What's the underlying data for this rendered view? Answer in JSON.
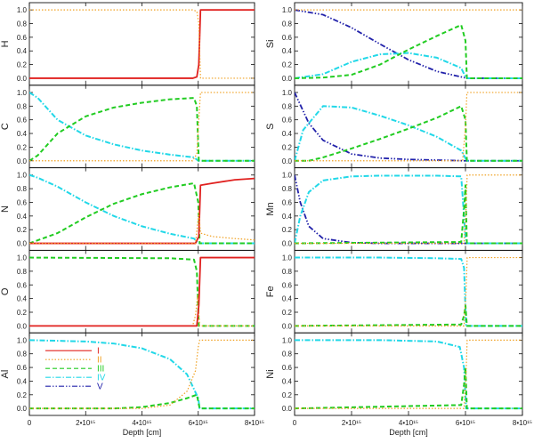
{
  "colors": {
    "I": "#e0201e",
    "II": "#f0a020",
    "III": "#22cc22",
    "IV": "#22d8e8",
    "V": "#2222aa"
  },
  "chart_data": {
    "type": "line",
    "xlim": [
      0,
      8000000000000000.0
    ],
    "ylim": [
      -0.05,
      1.08
    ],
    "ytick_values": [
      0.0,
      0.2,
      0.4,
      0.6,
      0.8,
      1.0
    ],
    "ytick_labels": [
      "0.0",
      "0.2",
      "0.4",
      "0.6",
      "0.8",
      "1.0"
    ],
    "xtick_values": [
      0,
      2000000000000000.0,
      4000000000000000.0,
      6000000000000000.0,
      8000000000000000.0
    ],
    "xtick_labels": [
      "0",
      "2•10¹⁵",
      "4•10¹⁵",
      "6•10¹⁵",
      "8•10¹⁵"
    ],
    "xlabel": "Depth [cm]",
    "legend": {
      "location": "Al panel, upper left",
      "entries": [
        {
          "label": "I",
          "ion": "I"
        },
        {
          "label": "II",
          "ion": "II"
        },
        {
          "label": "III",
          "ion": "III"
        },
        {
          "label": "IV",
          "ion": "IV"
        },
        {
          "label": "V",
          "ion": "V"
        }
      ]
    },
    "panels": [
      {
        "ylabel": "H",
        "series": [
          {
            "ion": "I",
            "x": [
              0,
              5800000000000000.0,
              5950000000000000.0,
              6020000000000000.0,
              6080000000000000.0,
              8000000000000000.0
            ],
            "y": [
              0,
              0,
              0.02,
              0.2,
              1.0,
              1.0
            ]
          },
          {
            "ion": "II",
            "x": [
              0,
              5800000000000000.0,
              5950000000000000.0,
              6020000000000000.0,
              6080000000000000.0,
              8000000000000000.0
            ],
            "y": [
              1.0,
              1.0,
              0.98,
              0.8,
              0.0,
              0.0
            ]
          }
        ]
      },
      {
        "ylabel": "Si",
        "series": [
          {
            "ion": "V",
            "x": [
              0,
              1000000000000000.0,
              2000000000000000.0,
              3000000000000000.0,
              4000000000000000.0,
              5000000000000000.0,
              5950000000000000.0,
              6050000000000000.0,
              8000000000000000.0
            ],
            "y": [
              1.0,
              0.93,
              0.74,
              0.5,
              0.27,
              0.1,
              0.01,
              0.0,
              0.0
            ]
          },
          {
            "ion": "IV",
            "x": [
              0,
              1000000000000000.0,
              2000000000000000.0,
              3000000000000000.0,
              4000000000000000.0,
              5000000000000000.0,
              5850000000000000.0,
              6000000000000000.0,
              6050000000000000.0,
              8000000000000000.0
            ],
            "y": [
              0.0,
              0.06,
              0.24,
              0.35,
              0.37,
              0.3,
              0.15,
              0.02,
              0.0,
              0.0
            ]
          },
          {
            "ion": "III",
            "x": [
              0,
              1000000000000000.0,
              2000000000000000.0,
              3000000000000000.0,
              4000000000000000.0,
              5000000000000000.0,
              5850000000000000.0,
              6000000000000000.0,
              6050000000000000.0,
              8000000000000000.0
            ],
            "y": [
              0.0,
              0.01,
              0.05,
              0.2,
              0.42,
              0.62,
              0.78,
              0.55,
              0.0,
              0.0
            ]
          },
          {
            "ion": "II",
            "x": [
              0,
              5900000000000000.0,
              6000000000000000.0,
              6050000000000000.0,
              8000000000000000.0
            ],
            "y": [
              1.0,
              1.0,
              1.0,
              1.0,
              1.0
            ]
          }
        ]
      },
      {
        "ylabel": "C",
        "series": [
          {
            "ion": "IV",
            "x": [
              0,
              300000000000000.0,
              1000000000000000.0,
              2000000000000000.0,
              3000000000000000.0,
              4000000000000000.0,
              5000000000000000.0,
              5850000000000000.0,
              6000000000000000.0,
              8000000000000000.0
            ],
            "y": [
              1.0,
              0.92,
              0.6,
              0.37,
              0.24,
              0.15,
              0.09,
              0.05,
              0.0,
              0.0
            ]
          },
          {
            "ion": "III",
            "x": [
              0,
              300000000000000.0,
              1000000000000000.0,
              2000000000000000.0,
              3000000000000000.0,
              4000000000000000.0,
              5000000000000000.0,
              5850000000000000.0,
              5950000000000000.0,
              6020000000000000.0,
              8000000000000000.0
            ],
            "y": [
              0.0,
              0.08,
              0.4,
              0.65,
              0.78,
              0.85,
              0.9,
              0.92,
              0.8,
              0.0,
              0.0
            ]
          },
          {
            "ion": "II",
            "x": [
              0,
              5800000000000000.0,
              5950000000000000.0,
              6020000000000000.0,
              6080000000000000.0,
              8000000000000000.0
            ],
            "y": [
              0.0,
              0.0,
              0.1,
              0.6,
              1.0,
              1.0
            ]
          }
        ]
      },
      {
        "ylabel": "S",
        "series": [
          {
            "ion": "V",
            "x": [
              0,
              500000000000000.0,
              1000000000000000.0,
              2000000000000000.0,
              3000000000000000.0,
              4000000000000000.0,
              5000000000000000.0,
              6000000000000000.0,
              8000000000000000.0
            ],
            "y": [
              1.0,
              0.55,
              0.3,
              0.1,
              0.04,
              0.02,
              0.01,
              0.0,
              0.0
            ]
          },
          {
            "ion": "IV",
            "x": [
              0,
              300000000000000.0,
              1000000000000000.0,
              2000000000000000.0,
              3000000000000000.0,
              4000000000000000.0,
              5000000000000000.0,
              5850000000000000.0,
              6050000000000000.0,
              8000000000000000.0
            ],
            "y": [
              0.0,
              0.45,
              0.8,
              0.78,
              0.66,
              0.52,
              0.35,
              0.15,
              0.0,
              0.0
            ]
          },
          {
            "ion": "III",
            "x": [
              0,
              500000000000000.0,
              1000000000000000.0,
              2000000000000000.0,
              3000000000000000.0,
              4000000000000000.0,
              5000000000000000.0,
              5850000000000000.0,
              6000000000000000.0,
              6050000000000000.0,
              8000000000000000.0
            ],
            "y": [
              0.0,
              0.0,
              0.05,
              0.18,
              0.32,
              0.47,
              0.63,
              0.8,
              0.6,
              0.0,
              0.0
            ]
          },
          {
            "ion": "II",
            "x": [
              0,
              5900000000000000.0,
              6000000000000000.0,
              6050000000000000.0,
              8000000000000000.0
            ],
            "y": [
              0.0,
              0.0,
              0.5,
              1.0,
              1.0
            ]
          }
        ]
      },
      {
        "ylabel": "N",
        "series": [
          {
            "ion": "IV",
            "x": [
              0,
              300000000000000.0,
              1000000000000000.0,
              2000000000000000.0,
              3000000000000000.0,
              4000000000000000.0,
              5000000000000000.0,
              5850000000000000.0,
              6000000000000000.0,
              8000000000000000.0
            ],
            "y": [
              1.0,
              0.96,
              0.83,
              0.6,
              0.4,
              0.25,
              0.14,
              0.07,
              0.0,
              0.0
            ]
          },
          {
            "ion": "III",
            "x": [
              0,
              1000000000000000.0,
              2000000000000000.0,
              3000000000000000.0,
              4000000000000000.0,
              5000000000000000.0,
              5850000000000000.0,
              6000000000000000.0,
              6050000000000000.0,
              8000000000000000.0
            ],
            "y": [
              0.0,
              0.15,
              0.38,
              0.58,
              0.72,
              0.82,
              0.88,
              0.6,
              0.0,
              0.0
            ]
          },
          {
            "ion": "I",
            "x": [
              0,
              5900000000000000.0,
              6020000000000000.0,
              6080000000000000.0,
              6500000000000000.0,
              7300000000000000.0,
              8000000000000000.0
            ],
            "y": [
              0.0,
              0.0,
              0.1,
              0.85,
              0.88,
              0.93,
              0.95
            ]
          },
          {
            "ion": "II",
            "x": [
              0,
              5900000000000000.0,
              6020000000000000.0,
              6080000000000000.0,
              6500000000000000.0,
              7300000000000000.0,
              8000000000000000.0
            ],
            "y": [
              0.0,
              0.0,
              0.45,
              0.15,
              0.1,
              0.07,
              0.05
            ]
          }
        ]
      },
      {
        "ylabel": "Mn",
        "series": [
          {
            "ion": "V",
            "x": [
              0,
              200000000000000.0,
              500000000000000.0,
              1000000000000000.0,
              2000000000000000.0,
              3000000000000000.0,
              4000000000000000.0,
              5000000000000000.0,
              5900000000000000.0,
              6050000000000000.0,
              8000000000000000.0
            ],
            "y": [
              1.0,
              0.6,
              0.25,
              0.07,
              0.01,
              0.0,
              0.0,
              0.0,
              0.0,
              0.0,
              0.0
            ]
          },
          {
            "ion": "IV",
            "x": [
              0,
              200000000000000.0,
              500000000000000.0,
              1000000000000000.0,
              2000000000000000.0,
              3000000000000000.0,
              4000000000000000.0,
              5000000000000000.0,
              5850000000000000.0,
              6000000000000000.0,
              6050000000000000.0,
              8000000000000000.0
            ],
            "y": [
              0.0,
              0.4,
              0.75,
              0.92,
              0.98,
              0.99,
              0.99,
              0.99,
              0.98,
              0.1,
              0.0,
              0.0
            ]
          },
          {
            "ion": "III",
            "x": [
              0,
              5850000000000000.0,
              5950000000000000.0,
              6000000000000000.0,
              6050000000000000.0,
              8000000000000000.0
            ],
            "y": [
              0.0,
              0.02,
              0.5,
              0.85,
              0.0,
              0.0
            ]
          },
          {
            "ion": "II",
            "x": [
              0,
              5950000000000000.0,
              6020000000000000.0,
              6060000000000000.0,
              8000000000000000.0
            ],
            "y": [
              0.0,
              0.0,
              0.5,
              1.0,
              1.0
            ]
          }
        ]
      },
      {
        "ylabel": "O",
        "series": [
          {
            "ion": "III",
            "x": [
              0,
              5000000000000000.0,
              5850000000000000.0,
              5950000000000000.0,
              6020000000000000.0,
              8000000000000000.0
            ],
            "y": [
              1.0,
              0.99,
              0.97,
              0.8,
              0.0,
              0.0
            ]
          },
          {
            "ion": "II",
            "x": [
              0,
              5800000000000000.0,
              5900000000000000.0,
              5980000000000000.0,
              6050000000000000.0,
              8000000000000000.0
            ],
            "y": [
              0.0,
              0.0,
              0.15,
              0.45,
              0.0,
              0.0
            ]
          },
          {
            "ion": "I",
            "x": [
              0,
              5950000000000000.0,
              6020000000000000.0,
              6080000000000000.0,
              8000000000000000.0
            ],
            "y": [
              0.0,
              0.0,
              0.3,
              1.0,
              1.0
            ]
          }
        ]
      },
      {
        "ylabel": "Fe",
        "series": [
          {
            "ion": "IV",
            "x": [
              0,
              3000000000000000.0,
              5000000000000000.0,
              5850000000000000.0,
              5950000000000000.0,
              6020000000000000.0,
              8000000000000000.0
            ],
            "y": [
              1.0,
              1.0,
              0.99,
              0.98,
              0.85,
              0.0,
              0.0
            ]
          },
          {
            "ion": "III",
            "x": [
              0,
              5850000000000000.0,
              5950000000000000.0,
              6000000000000000.0,
              6050000000000000.0,
              8000000000000000.0
            ],
            "y": [
              0.0,
              0.02,
              0.15,
              0.3,
              0.0,
              0.0
            ]
          },
          {
            "ion": "II",
            "x": [
              0,
              5950000000000000.0,
              6020000000000000.0,
              6060000000000000.0,
              8000000000000000.0
            ],
            "y": [
              0.0,
              0.0,
              0.5,
              1.0,
              1.0
            ]
          }
        ]
      },
      {
        "ylabel": "Al",
        "series": [
          {
            "ion": "IV",
            "x": [
              0,
              2000000000000000.0,
              3000000000000000.0,
              4000000000000000.0,
              5000000000000000.0,
              5600000000000000.0,
              6000000000000000.0,
              6050000000000000.0,
              8000000000000000.0
            ],
            "y": [
              1.0,
              0.98,
              0.95,
              0.88,
              0.72,
              0.5,
              0.15,
              0.0,
              0.0
            ]
          },
          {
            "ion": "III",
            "x": [
              0,
              3000000000000000.0,
              4000000000000000.0,
              5000000000000000.0,
              5600000000000000.0,
              5950000000000000.0,
              6050000000000000.0,
              8000000000000000.0
            ],
            "y": [
              0.0,
              0.0,
              0.02,
              0.08,
              0.15,
              0.2,
              0.0,
              0.0
            ]
          },
          {
            "ion": "II",
            "x": [
              0,
              4000000000000000.0,
              5000000000000000.0,
              5600000000000000.0,
              5900000000000000.0,
              6000000000000000.0,
              6050000000000000.0,
              8000000000000000.0
            ],
            "y": [
              0.0,
              0.0,
              0.05,
              0.25,
              0.55,
              0.9,
              1.0,
              1.0
            ]
          }
        ]
      },
      {
        "ylabel": "Ni",
        "series": [
          {
            "ion": "IV",
            "x": [
              0,
              3000000000000000.0,
              5000000000000000.0,
              5800000000000000.0,
              5950000000000000.0,
              6020000000000000.0,
              8000000000000000.0
            ],
            "y": [
              1.0,
              1.0,
              0.98,
              0.9,
              0.6,
              0.0,
              0.0
            ]
          },
          {
            "ion": "III",
            "x": [
              0,
              5850000000000000.0,
              5950000000000000.0,
              6000000000000000.0,
              6050000000000000.0,
              8000000000000000.0
            ],
            "y": [
              0.0,
              0.05,
              0.35,
              0.6,
              0.0,
              0.0
            ]
          },
          {
            "ion": "II",
            "x": [
              0,
              5950000000000000.0,
              6020000000000000.0,
              6060000000000000.0,
              8000000000000000.0
            ],
            "y": [
              0.0,
              0.0,
              0.5,
              1.0,
              1.0
            ]
          }
        ]
      }
    ]
  }
}
